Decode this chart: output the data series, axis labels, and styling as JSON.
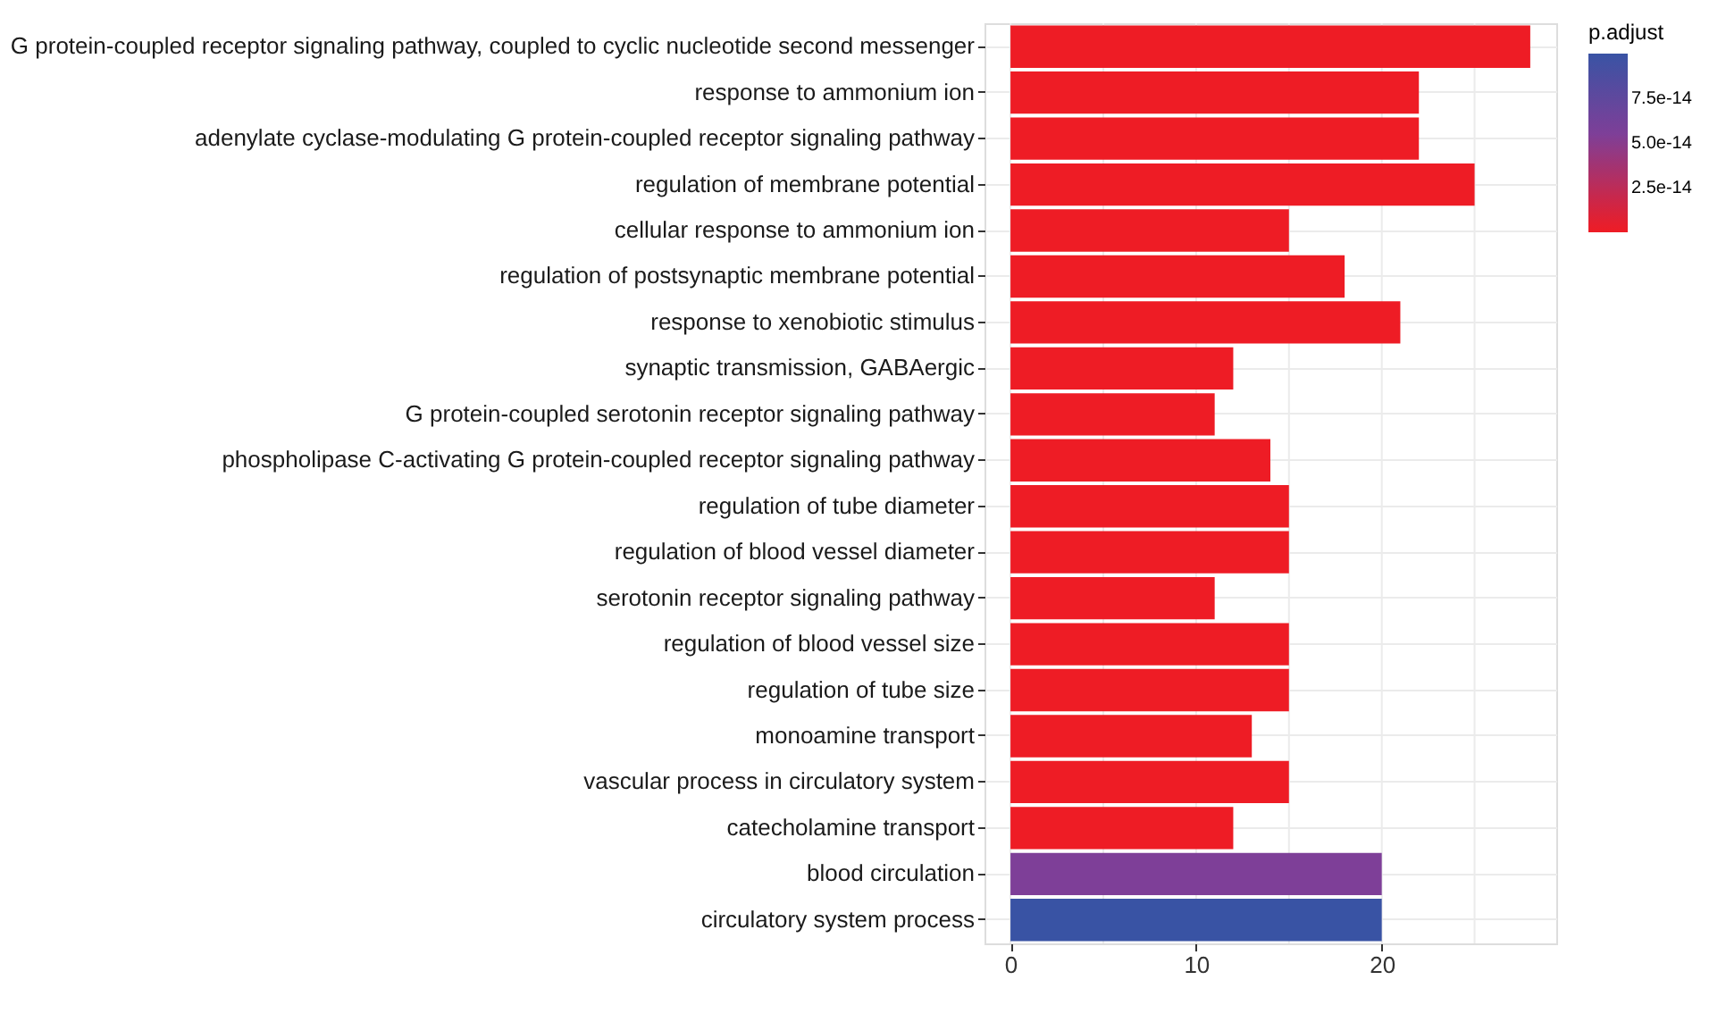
{
  "chart_data": {
    "type": "bar",
    "orientation": "horizontal",
    "categories": [
      "G protein-coupled receptor signaling pathway, coupled to cyclic nucleotide second messenger",
      "response to ammonium ion",
      "adenylate cyclase-modulating G protein-coupled receptor signaling pathway",
      "regulation of membrane potential",
      "cellular response to ammonium ion",
      "regulation of postsynaptic membrane potential",
      "response to xenobiotic stimulus",
      "synaptic transmission, GABAergic",
      "G protein-coupled serotonin receptor signaling pathway",
      "phospholipase C-activating G protein-coupled receptor signaling pathway",
      "regulation of tube diameter",
      "regulation of blood vessel diameter",
      "serotonin receptor signaling pathway",
      "regulation of blood vessel size",
      "regulation of tube size",
      "monoamine transport",
      "vascular process in circulatory system",
      "catecholamine transport",
      "blood circulation",
      "circulatory system process"
    ],
    "values": [
      28,
      22,
      22,
      25,
      15,
      18,
      21,
      12,
      11,
      14,
      15,
      15,
      11,
      15,
      15,
      13,
      15,
      12,
      20,
      20
    ],
    "cvalues": [
      1e-15,
      1e-15,
      1e-15,
      1e-15,
      1e-15,
      1e-15,
      1e-15,
      1e-15,
      1e-15,
      1e-15,
      1e-15,
      1e-15,
      1e-15,
      1e-15,
      1e-15,
      1e-15,
      1e-15,
      1e-15,
      5.5e-14,
      1e-13
    ],
    "colors": [
      "#ee1c25",
      "#ee1c25",
      "#ee1c25",
      "#ee1c25",
      "#ee1c25",
      "#ee1c25",
      "#ee1c25",
      "#ee1c25",
      "#ee1c25",
      "#ee1c25",
      "#ee1c25",
      "#ee1c25",
      "#ee1c25",
      "#ee1c25",
      "#ee1c25",
      "#ee1c25",
      "#ee1c25",
      "#ee1c25",
      "#7e3f98",
      "#3953a4"
    ],
    "clabel": "p.adjust",
    "clim": [
      0,
      1e-13
    ],
    "cticks": [
      {
        "value": 2.5e-14,
        "label": "2.5e-14"
      },
      {
        "value": 5e-14,
        "label": "5.0e-14"
      },
      {
        "value": 7.5e-14,
        "label": "7.5e-14"
      }
    ],
    "xlim": [
      -1.4,
      29.4
    ],
    "xticks": [
      0,
      {
        "value": 5,
        "label": null
      },
      10,
      {
        "value": 15,
        "label": null
      },
      20,
      {
        "value": 25,
        "label": null
      }
    ],
    "grid": true
  }
}
